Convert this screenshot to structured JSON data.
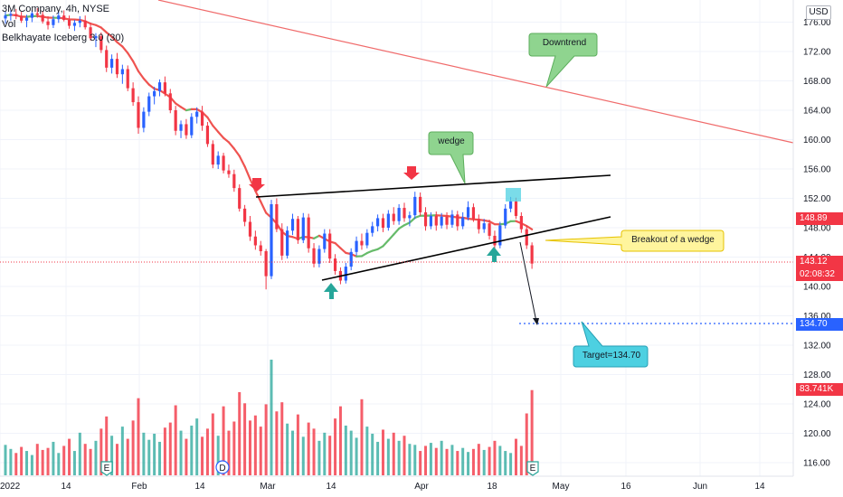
{
  "header": {
    "symbol_line": "3M Company, 4h, NYSE",
    "vol_label": "Vol",
    "indicator_label": "Belkhayate Iceberg 3.0 (30)"
  },
  "currency": "USD",
  "price_tags": {
    "ma_value": "148.89",
    "last_price": "143.12",
    "countdown": "02:08:32",
    "target": "134.70",
    "volume": "83.741K"
  },
  "annotations": {
    "downtrend": "Downtrend",
    "wedge": "wedge",
    "breakout": "Breakout of a wedge",
    "target": "Target=134.70"
  },
  "colors": {
    "up": "#2962ff",
    "down": "#f23645",
    "ma_down": "#ef5350",
    "ma_up": "#66bb6a",
    "trendline": "#000000",
    "downtrend_line": "#f06b6b",
    "callout_green": "#8fd48f",
    "callout_yellow": "#fff59d",
    "callout_cyan": "#4dd0e1",
    "arrow_green": "#26a69a",
    "arrow_red": "#f23645"
  },
  "chart_data": {
    "type": "candlestick",
    "y_ticks": [
      116,
      120,
      124,
      128,
      132,
      136,
      140,
      144,
      148,
      152,
      156,
      160,
      164,
      168,
      172,
      176
    ],
    "y_range": [
      114,
      178
    ],
    "x_ticks": [
      "2022",
      "14",
      "Feb",
      "14",
      "Mar",
      "14",
      "Apr",
      "18",
      "May",
      "16",
      "Jun",
      "14"
    ],
    "event_markers": [
      "E",
      "D",
      "E"
    ],
    "ohlc": [
      [
        176.5,
        177.5,
        175.8,
        176.9
      ],
      [
        176.9,
        177.6,
        176.2,
        177.1
      ],
      [
        177.1,
        177.8,
        176.4,
        176.8
      ],
      [
        176.8,
        177.4,
        175.9,
        176.2
      ],
      [
        176.2,
        177.0,
        175.3,
        176.6
      ],
      [
        176.6,
        177.6,
        176.0,
        177.2
      ],
      [
        177.2,
        177.9,
        176.6,
        177.0
      ],
      [
        177.0,
        177.5,
        175.8,
        176.1
      ],
      [
        176.1,
        176.8,
        175.0,
        175.6
      ],
      [
        175.6,
        176.9,
        175.2,
        176.4
      ],
      [
        176.4,
        177.4,
        175.9,
        176.9
      ],
      [
        176.9,
        177.6,
        176.1,
        176.3
      ],
      [
        176.3,
        176.9,
        175.1,
        175.5
      ],
      [
        175.5,
        176.3,
        174.8,
        175.9
      ],
      [
        175.9,
        176.8,
        175.3,
        176.2
      ],
      [
        176.2,
        176.9,
        175.0,
        175.3
      ],
      [
        175.3,
        175.9,
        173.5,
        173.8
      ],
      [
        173.8,
        174.5,
        172.6,
        174.1
      ],
      [
        174.1,
        174.6,
        171.8,
        172.2
      ],
      [
        172.2,
        172.8,
        169.2,
        169.8
      ],
      [
        169.8,
        171.6,
        169.0,
        171.0
      ],
      [
        171.0,
        171.8,
        168.4,
        168.9
      ],
      [
        168.9,
        170.2,
        167.6,
        169.6
      ],
      [
        169.6,
        170.1,
        166.6,
        167.0
      ],
      [
        167.0,
        167.8,
        164.6,
        165.1
      ],
      [
        165.1,
        165.9,
        160.8,
        161.6
      ],
      [
        161.6,
        164.4,
        161.0,
        163.8
      ],
      [
        163.8,
        166.4,
        163.2,
        165.9
      ],
      [
        165.9,
        167.2,
        164.8,
        166.6
      ],
      [
        166.6,
        168.2,
        165.9,
        167.8
      ],
      [
        167.8,
        168.6,
        165.9,
        166.3
      ],
      [
        166.3,
        166.9,
        163.6,
        164.0
      ],
      [
        164.0,
        164.6,
        160.6,
        161.2
      ],
      [
        161.2,
        162.6,
        160.2,
        162.1
      ],
      [
        162.1,
        162.8,
        160.1,
        160.6
      ],
      [
        160.6,
        163.6,
        160.2,
        163.1
      ],
      [
        163.1,
        164.4,
        162.2,
        163.8
      ],
      [
        163.8,
        164.6,
        161.2,
        161.9
      ],
      [
        161.9,
        162.4,
        159.0,
        159.4
      ],
      [
        159.4,
        159.9,
        156.1,
        156.6
      ],
      [
        156.6,
        158.4,
        156.0,
        157.8
      ],
      [
        157.8,
        158.2,
        155.4,
        155.8
      ],
      [
        155.8,
        156.6,
        154.8,
        155.3
      ],
      [
        155.3,
        155.9,
        152.9,
        153.4
      ],
      [
        153.4,
        153.9,
        150.2,
        150.6
      ],
      [
        150.6,
        151.1,
        148.2,
        148.8
      ],
      [
        148.8,
        149.6,
        146.2,
        146.8
      ],
      [
        146.8,
        147.6,
        145.0,
        145.6
      ],
      [
        145.6,
        146.2,
        144.2,
        144.8
      ],
      [
        144.8,
        145.1,
        139.6,
        141.4
      ],
      [
        141.4,
        151.8,
        141.0,
        151.2
      ],
      [
        151.2,
        152.0,
        147.4,
        147.8
      ],
      [
        147.8,
        148.6,
        143.6,
        144.2
      ],
      [
        144.2,
        148.2,
        143.8,
        147.6
      ],
      [
        147.6,
        149.9,
        147.0,
        149.2
      ],
      [
        149.2,
        149.6,
        145.8,
        146.3
      ],
      [
        146.3,
        150.0,
        145.9,
        149.4
      ],
      [
        149.4,
        149.9,
        144.6,
        145.2
      ],
      [
        145.2,
        145.9,
        142.6,
        143.1
      ],
      [
        143.1,
        145.6,
        142.6,
        145.1
      ],
      [
        145.1,
        147.8,
        144.6,
        147.2
      ],
      [
        147.2,
        147.8,
        143.2,
        143.8
      ],
      [
        143.8,
        144.4,
        141.6,
        142.1
      ],
      [
        142.1,
        142.6,
        140.3,
        140.8
      ],
      [
        140.8,
        143.2,
        140.4,
        142.7
      ],
      [
        142.7,
        145.2,
        142.2,
        144.7
      ],
      [
        144.7,
        146.8,
        144.2,
        146.2
      ],
      [
        146.2,
        147.2,
        145.0,
        145.6
      ],
      [
        145.6,
        147.8,
        145.2,
        147.3
      ],
      [
        147.3,
        148.8,
        146.8,
        148.2
      ],
      [
        148.2,
        149.8,
        147.5,
        149.3
      ],
      [
        149.3,
        149.9,
        147.4,
        148.0
      ],
      [
        148.0,
        150.4,
        147.6,
        149.9
      ],
      [
        149.9,
        150.8,
        148.4,
        148.9
      ],
      [
        148.9,
        151.2,
        148.4,
        150.7
      ],
      [
        150.7,
        151.4,
        148.8,
        149.3
      ],
      [
        149.3,
        150.2,
        148.2,
        149.7
      ],
      [
        149.7,
        152.9,
        149.2,
        152.2
      ],
      [
        152.2,
        152.8,
        149.6,
        150.1
      ],
      [
        150.1,
        150.8,
        147.6,
        148.2
      ],
      [
        148.2,
        150.1,
        147.8,
        149.6
      ],
      [
        149.6,
        150.2,
        147.6,
        148.3
      ],
      [
        148.3,
        150.0,
        147.9,
        149.5
      ],
      [
        149.5,
        150.1,
        147.8,
        148.4
      ],
      [
        148.4,
        150.4,
        148.0,
        149.8
      ],
      [
        149.8,
        150.3,
        147.6,
        148.2
      ],
      [
        148.2,
        150.1,
        147.8,
        149.4
      ],
      [
        149.4,
        151.6,
        149.0,
        150.8
      ],
      [
        150.8,
        151.3,
        148.8,
        149.2
      ],
      [
        149.2,
        149.8,
        147.2,
        147.8
      ],
      [
        147.8,
        149.2,
        147.3,
        148.6
      ],
      [
        148.6,
        149.1,
        146.4,
        146.9
      ],
      [
        146.9,
        147.6,
        145.1,
        145.6
      ],
      [
        145.6,
        148.8,
        145.2,
        148.3
      ],
      [
        148.3,
        151.2,
        147.9,
        150.6
      ],
      [
        150.6,
        152.2,
        150.1,
        151.6
      ],
      [
        151.6,
        152.1,
        149.2,
        149.6
      ],
      [
        149.6,
        150.1,
        147.3,
        147.8
      ],
      [
        147.8,
        148.3,
        145.1,
        145.6
      ],
      [
        145.6,
        146.0,
        142.4,
        143.12
      ]
    ],
    "volume": [
      3.0,
      2.6,
      2.2,
      2.8,
      2.4,
      2.0,
      3.1,
      2.5,
      2.7,
      3.3,
      2.2,
      2.9,
      3.6,
      2.4,
      4.2,
      3.1,
      2.6,
      3.4,
      4.6,
      5.8,
      3.9,
      3.1,
      4.8,
      3.6,
      5.4,
      7.6,
      4.2,
      3.5,
      4.1,
      3.3,
      4.7,
      5.2,
      6.9,
      4.4,
      3.6,
      4.9,
      5.6,
      3.8,
      4.6,
      6.1,
      3.9,
      6.8,
      4.4,
      5.3,
      8.2,
      7.1,
      5.4,
      5.9,
      4.8,
      7.0,
      11.4,
      6.3,
      7.2,
      5.1,
      4.4,
      6.0,
      3.8,
      5.2,
      4.6,
      3.4,
      4.2,
      3.9,
      5.6,
      6.8,
      4.9,
      4.4,
      3.7,
      7.5,
      4.8,
      4.1,
      3.3,
      4.5,
      3.6,
      4.2,
      3.4,
      3.9,
      3.1,
      3.0,
      2.4,
      2.9,
      3.2,
      2.7,
      3.4,
      2.6,
      3.0,
      2.4,
      2.7,
      2.3,
      2.6,
      3.1,
      2.5,
      2.8,
      3.4,
      2.9,
      2.4,
      2.2,
      3.6,
      2.9,
      6.1,
      8.4
    ]
  }
}
